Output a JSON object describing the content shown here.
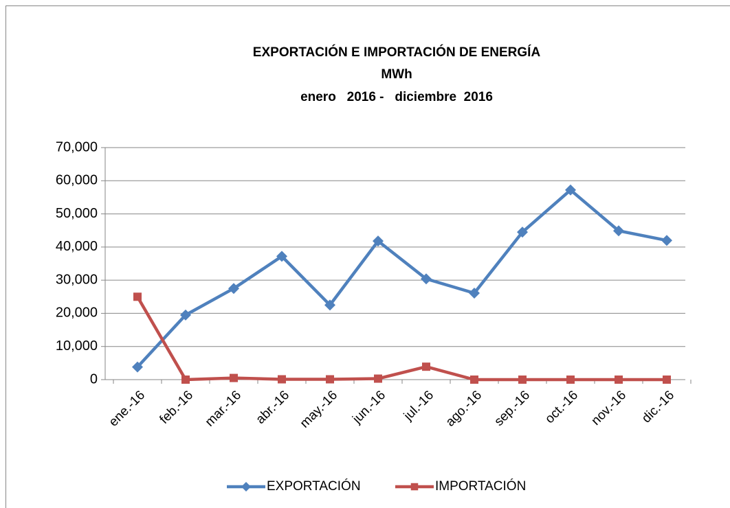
{
  "chart_data": {
    "type": "line",
    "title": "EXPORTACIÓN E IMPORTACIÓN DE ENERGÍA",
    "subtitle": "MWh",
    "period": "enero   2016 -   diciembre  2016",
    "categories": [
      "ene.-16",
      "feb.-16",
      "mar.-16",
      "abr.-16",
      "may.-16",
      "jun.-16",
      "jul.-16",
      "ago.-16",
      "sep.-16",
      "oct.-16",
      "nov.-16",
      "dic.-16"
    ],
    "series": [
      {
        "name": "EXPORTACIÓN",
        "color": "#4f81bd",
        "marker": "diamond",
        "values": [
          3800,
          19500,
          27500,
          37200,
          22500,
          41800,
          30400,
          26100,
          44500,
          57200,
          44900,
          42000
        ]
      },
      {
        "name": "IMPORTACIÓN",
        "color": "#c0504d",
        "marker": "square",
        "values": [
          25000,
          0,
          500,
          100,
          100,
          300,
          3900,
          0,
          0,
          0,
          0,
          0
        ]
      }
    ],
    "ylim": [
      0,
      70000
    ],
    "yticks": [
      0,
      {
        "value": 10000,
        "label": "10,000"
      },
      {
        "value": 20000,
        "label": "20,000"
      },
      {
        "value": 30000,
        "label": "30,000"
      },
      {
        "value": 40000,
        "label": "40,000"
      },
      {
        "value": 50000,
        "label": "50,000"
      },
      {
        "value": 60000,
        "label": "60,000"
      },
      {
        "value": 70000,
        "label": "70,000"
      }
    ],
    "grid": true,
    "legend": "bottom"
  }
}
